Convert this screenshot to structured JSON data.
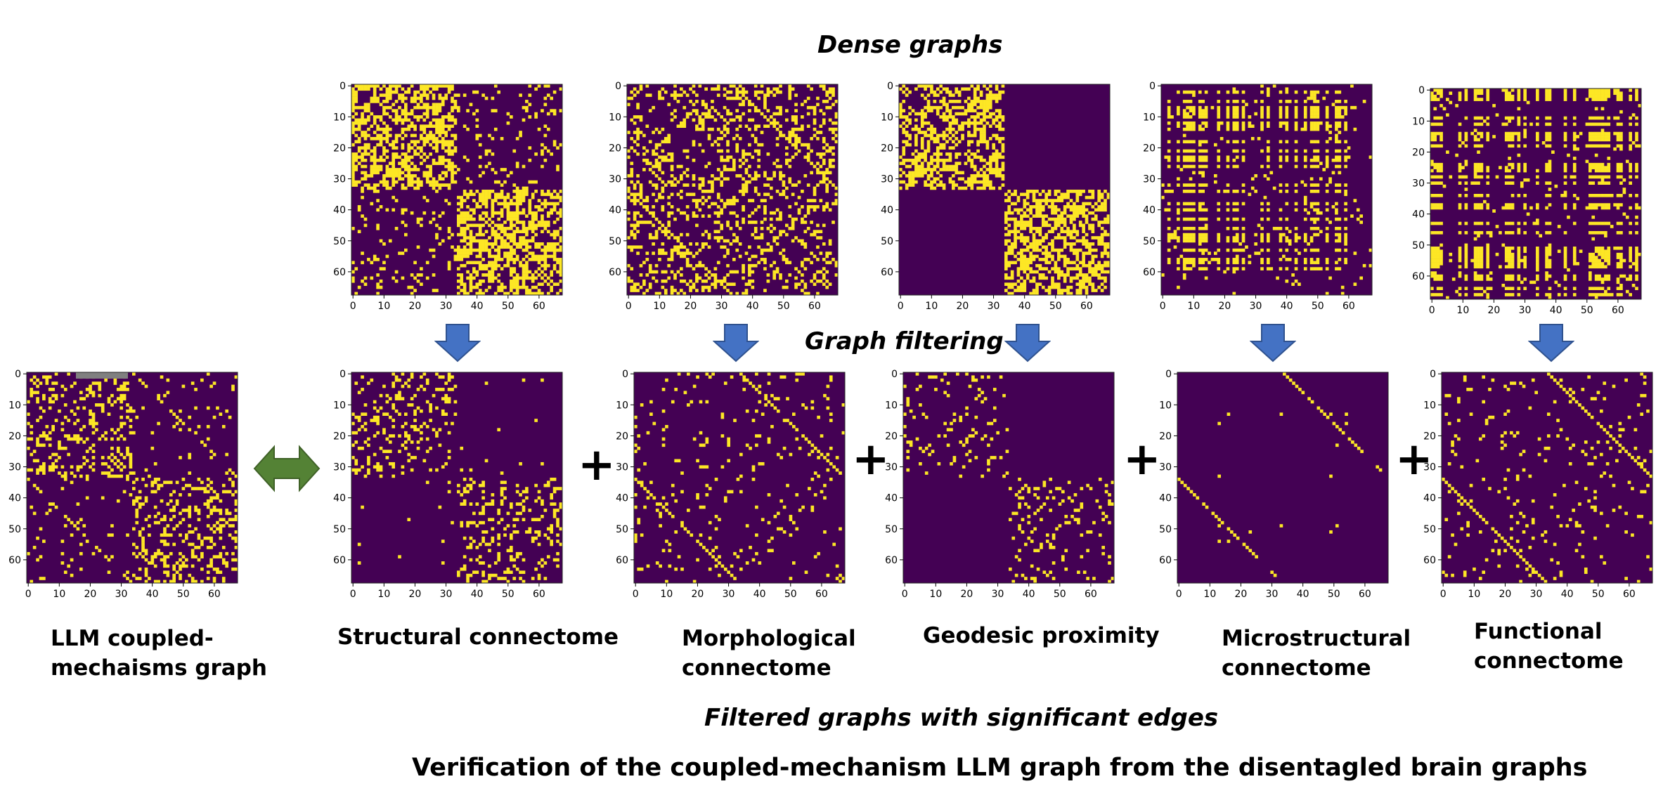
{
  "headings": {
    "dense": "Dense graphs",
    "filtering": "Graph filtering",
    "filtered": "Filtered graphs with significant edges",
    "verification": "Verification of the coupled-mechanism LLM graph from the disentagled brain graphs"
  },
  "captions": {
    "llm": "LLM coupled-\nmechaisms graph",
    "structural": "Structural connectome",
    "morphological": "Morphological\nconnectome",
    "geodesic": "Geodesic proximity",
    "microstructural": "Microstructural\nconnectome",
    "functional": "Functional\nconnectome"
  },
  "symbols": {
    "plus": "+"
  },
  "colors": {
    "background": "#440154",
    "edge": "#fde725",
    "arrow_down": "#4472c4",
    "arrow_double": "#548235",
    "highlight_bar": "#808080"
  },
  "icons": {
    "down_arrow": "down-arrow-icon",
    "double_arrow": "double-arrow-icon"
  },
  "chart_data": [
    {
      "id": "dense-structural",
      "type": "heatmap",
      "row": "dense",
      "n": 68,
      "ticks": [
        "0",
        "10",
        "20",
        "30",
        "40",
        "50",
        "60"
      ],
      "pattern": "modular-dense"
    },
    {
      "id": "dense-morphological",
      "type": "heatmap",
      "row": "dense",
      "n": 68,
      "ticks": [
        "0",
        "10",
        "20",
        "30",
        "40",
        "50",
        "60"
      ],
      "pattern": "random-medium"
    },
    {
      "id": "dense-geodesic",
      "type": "heatmap",
      "row": "dense",
      "n": 68,
      "ticks": [
        "0",
        "10",
        "20",
        "30",
        "40",
        "50",
        "60"
      ],
      "pattern": "two-blocks-dense"
    },
    {
      "id": "dense-microstructural",
      "type": "heatmap",
      "row": "dense",
      "n": 68,
      "ticks": [
        "0",
        "10",
        "20",
        "30",
        "40",
        "50",
        "60"
      ],
      "pattern": "node-stripes"
    },
    {
      "id": "dense-functional",
      "type": "heatmap",
      "row": "dense",
      "n": 68,
      "ticks": [
        "0",
        "10",
        "20",
        "30",
        "40",
        "50",
        "60"
      ],
      "pattern": "node-stripes-heavy"
    },
    {
      "id": "llm-graph",
      "type": "heatmap",
      "row": "filtered",
      "n": 68,
      "ticks": [
        "0",
        "10",
        "20",
        "30",
        "40",
        "50",
        "60"
      ],
      "pattern": "modular-medium"
    },
    {
      "id": "filtered-structural",
      "type": "heatmap",
      "row": "filtered",
      "n": 68,
      "ticks": [
        "0",
        "10",
        "20",
        "30",
        "40",
        "50",
        "60"
      ],
      "pattern": "two-blocks-medium"
    },
    {
      "id": "filtered-morphological",
      "type": "heatmap",
      "row": "filtered",
      "n": 68,
      "ticks": [
        "0",
        "10",
        "20",
        "30",
        "40",
        "50",
        "60"
      ],
      "pattern": "random-sparse-diag"
    },
    {
      "id": "filtered-geodesic",
      "type": "heatmap",
      "row": "filtered",
      "n": 68,
      "ticks": [
        "0",
        "10",
        "20",
        "30",
        "40",
        "50",
        "60"
      ],
      "pattern": "two-blocks-sparse"
    },
    {
      "id": "filtered-microstructural",
      "type": "heatmap",
      "row": "filtered",
      "n": 68,
      "ticks": [
        "0",
        "10",
        "20",
        "30",
        "40",
        "50",
        "60"
      ],
      "pattern": "node-stripes-sparse"
    },
    {
      "id": "filtered-functional",
      "type": "heatmap",
      "row": "filtered",
      "n": 68,
      "ticks": [
        "0",
        "10",
        "20",
        "30",
        "40",
        "50",
        "60"
      ],
      "pattern": "random-sparse-diag"
    }
  ]
}
